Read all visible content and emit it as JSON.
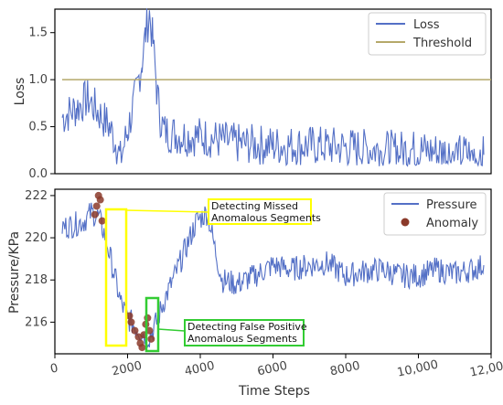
{
  "chart_data": [
    {
      "type": "line",
      "ylabel": "Loss",
      "xlim": [
        0,
        12000
      ],
      "ylim": [
        0,
        1.75
      ],
      "y_ticks": [
        "0.0",
        "0.5",
        "1.0",
        "1.5"
      ],
      "legend_position": "top-right",
      "series": [
        {
          "name": "Loss",
          "color": "#5470c6",
          "x": [
            200,
            600,
            900,
            1200,
            1500,
            1700,
            1800,
            2000,
            2200,
            2400,
            2500,
            2600,
            2700,
            2800,
            2900,
            3000,
            3500,
            4000,
            5000,
            6000,
            7000,
            8000,
            9000,
            10000,
            11000,
            11800
          ],
          "y": [
            0.6,
            0.7,
            0.8,
            0.65,
            0.5,
            0.3,
            0.15,
            0.45,
            0.8,
            1.2,
            1.5,
            1.7,
            1.4,
            0.9,
            0.6,
            0.45,
            0.4,
            0.4,
            0.32,
            0.3,
            0.3,
            0.28,
            0.25,
            0.25,
            0.22,
            0.2
          ]
        },
        {
          "name": "Threshold",
          "color": "#b5a86a",
          "x": [
            200,
            12000
          ],
          "y": [
            1.0,
            1.0
          ]
        }
      ]
    },
    {
      "type": "line",
      "xlabel": "Time Steps",
      "ylabel": "Pressure/KPa",
      "xlim": [
        0,
        12000
      ],
      "ylim": [
        214.5,
        222.3
      ],
      "x_ticks": [
        "0",
        "2000",
        "4000",
        "6000",
        "8000",
        "10,000",
        "12,000"
      ],
      "y_ticks": [
        "216",
        "218",
        "220",
        "222"
      ],
      "legend_position": "top-right",
      "series": [
        {
          "name": "Pressure",
          "color": "#5470c6",
          "x": [
            200,
            500,
            800,
            1000,
            1200,
            1400,
            1600,
            1800,
            2000,
            2200,
            2400,
            2600,
            2800,
            3000,
            3300,
            3600,
            3900,
            4200,
            4400,
            4600,
            5000,
            5500,
            6000,
            6500,
            7000,
            7500,
            8000,
            8500,
            9000,
            9500,
            10000,
            10500,
            11000,
            11500,
            11800
          ],
          "y": [
            220.5,
            220.6,
            220.8,
            221.2,
            221.0,
            220.0,
            218.5,
            217.0,
            216.2,
            215.8,
            215.5,
            215.3,
            216.0,
            217.0,
            218.2,
            219.5,
            220.8,
            221.2,
            219.5,
            218.0,
            217.8,
            218.2,
            218.7,
            218.5,
            218.7,
            218.8,
            218.2,
            218.4,
            218.5,
            218.2,
            218.2,
            218.5,
            218.3,
            218.5,
            218.7
          ]
        },
        {
          "name": "Anomaly",
          "color": "#8b3a2a",
          "x": [
            1100,
            1150,
            1200,
            1250,
            1300,
            2050,
            2100,
            2200,
            2300,
            2350,
            2400,
            2450,
            2500,
            2550,
            2600,
            2650
          ],
          "y": [
            221.1,
            221.5,
            222.0,
            221.8,
            220.8,
            216.3,
            216.0,
            215.6,
            215.3,
            215.0,
            214.8,
            215.4,
            215.9,
            216.2,
            215.6,
            215.2
          ]
        }
      ],
      "annotations": [
        {
          "text": "Detecting Missed Anomalous Segments",
          "line1": "Detecting Missed",
          "line2": "Anomalous Segments",
          "border_color": "#ffff00"
        },
        {
          "text": "Detecting False Positive Anomalous Segments",
          "line1": "Detecting False Positive",
          "line2": "Anomalous Segments",
          "border_color": "#33cc33"
        }
      ]
    }
  ]
}
